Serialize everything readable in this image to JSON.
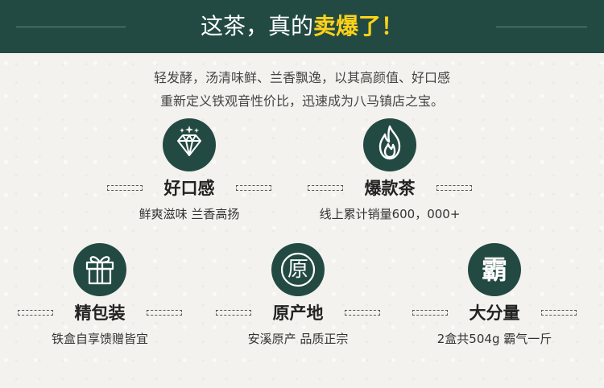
{
  "header": {
    "title_plain": "这茶，真的",
    "title_highlight": "卖爆了！"
  },
  "intro": {
    "line1": "轻发酵，汤清味鲜、兰香飘逸，以其高颜值、好口感",
    "line2": "重新定义铁观音性价比，迅速成为八马镇店之宝。"
  },
  "features": [
    {
      "title": "好口感",
      "desc": "鲜爽滋味 兰香高扬",
      "icon": "diamond-icon"
    },
    {
      "title": "爆款茶",
      "desc": "线上累计销量600，000+",
      "icon": "flame-icon"
    },
    {
      "title": "精包装",
      "desc": "铁盒自享馈赠皆宜",
      "icon": "gift-icon"
    },
    {
      "title": "原产地",
      "desc": "安溪原产 品质正宗",
      "icon": "origin-seal-icon",
      "glyph": "原"
    },
    {
      "title": "大分量",
      "desc": "2盒共504g 霸气一斤",
      "icon": "dominant-glyph-icon",
      "glyph": "霸"
    }
  ],
  "colors": {
    "header_bg": "#234a42",
    "highlight": "#ffd21a",
    "icon_bg": "#234a42",
    "background": "#f2f1ec"
  }
}
